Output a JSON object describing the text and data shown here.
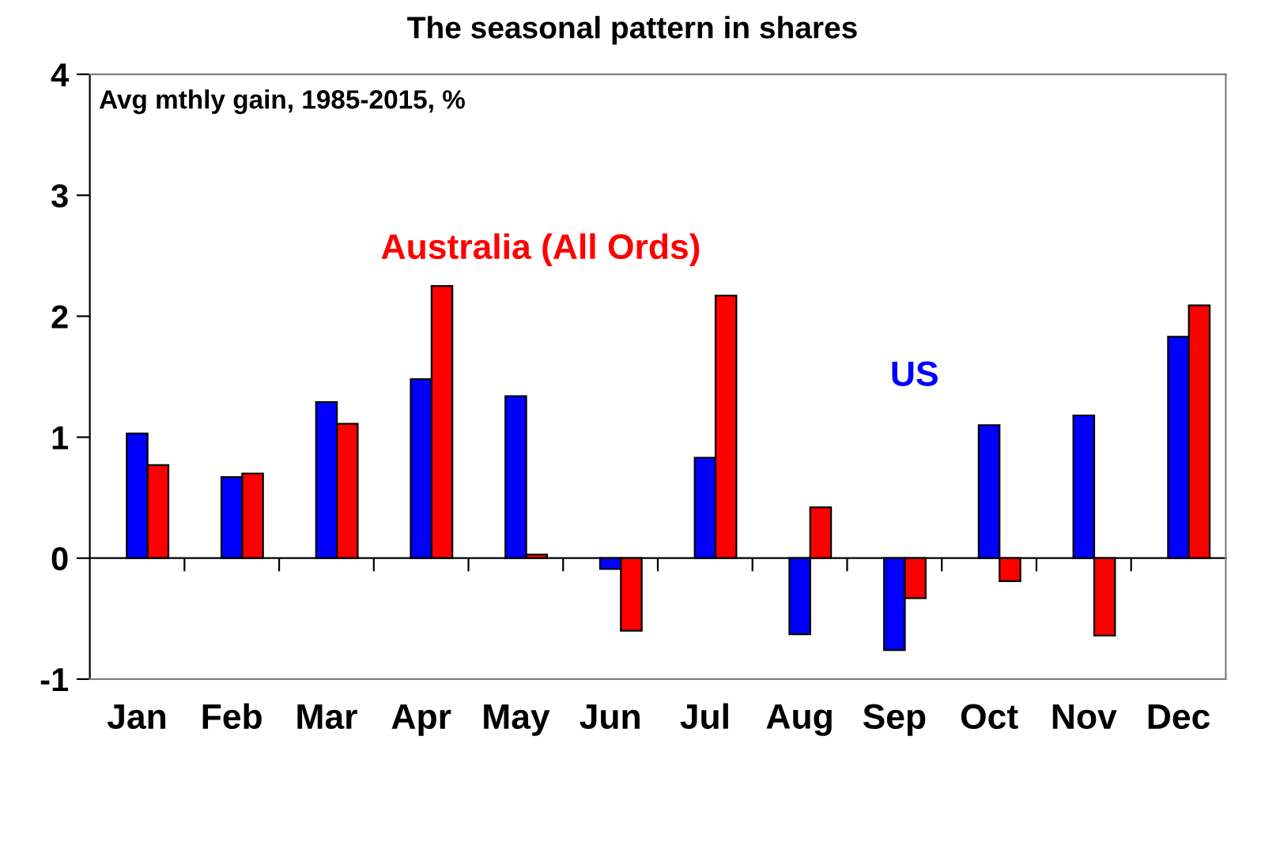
{
  "chart_data": {
    "type": "bar",
    "title": "The seasonal pattern in shares",
    "subtitle": "Avg mthly gain, 1985-2015, %",
    "categories": [
      "Jan",
      "Feb",
      "Mar",
      "Apr",
      "May",
      "Jun",
      "Jul",
      "Aug",
      "Sep",
      "Oct",
      "Nov",
      "Dec"
    ],
    "series": [
      {
        "name": "US",
        "color": "#0000ff",
        "values": [
          1.03,
          0.67,
          1.29,
          1.48,
          1.34,
          -0.09,
          0.83,
          -0.63,
          -0.76,
          1.1,
          1.18,
          1.83
        ]
      },
      {
        "name": "Australia (All Ords)",
        "color": "#ff0000",
        "values": [
          0.77,
          0.7,
          1.11,
          2.25,
          0.03,
          -0.6,
          2.17,
          0.42,
          -0.33,
          -0.19,
          -0.64,
          2.09
        ]
      }
    ],
    "ylim": [
      -1,
      4
    ],
    "yticks": [
      -1,
      0,
      1,
      2,
      3,
      4
    ]
  }
}
